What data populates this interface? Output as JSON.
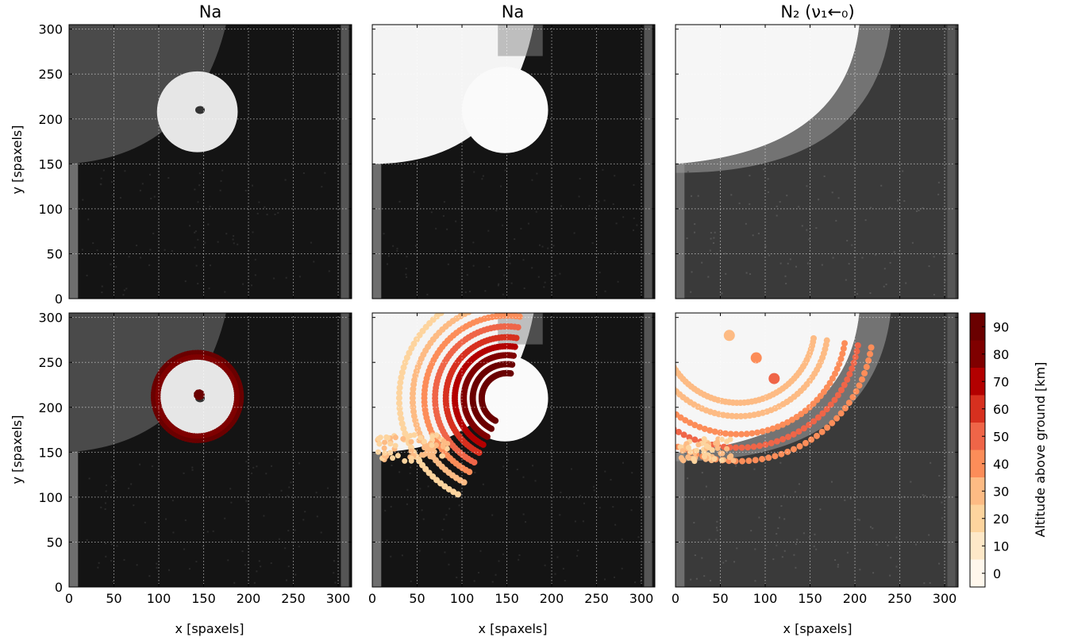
{
  "figure": {
    "panel_titles": [
      "Na",
      "Na",
      "N₂ (ν₁←₀)"
    ],
    "xlabel": "x [spaxels]",
    "ylabel": "y [spaxels]",
    "colorbar_label": "Altitude above ground [km]"
  },
  "chart_data": {
    "type": "heatmap",
    "layout": "2x3 image grid with overlaid altitude-coded scatter markers",
    "xlim": [
      0,
      315
    ],
    "ylim": [
      0,
      305
    ],
    "x_ticks": [
      0,
      50,
      100,
      150,
      200,
      250,
      300
    ],
    "y_ticks": [
      0,
      50,
      100,
      150,
      200,
      250,
      300
    ],
    "grid": true,
    "colormap": "OrRd (discrete, 10 km steps)",
    "colorbar": {
      "range": [
        -5,
        95
      ],
      "ticks": [
        0,
        10,
        20,
        30,
        40,
        50,
        60,
        70,
        80,
        90
      ],
      "colors": [
        "#fff7ec",
        "#fee8c8",
        "#fdd49e",
        "#fdbb84",
        "#fc8d59",
        "#ef6548",
        "#d7301f",
        "#b30000",
        "#7f0000",
        "#6a0000"
      ],
      "placement": "right of bottom row"
    },
    "panels": [
      {
        "row": 1,
        "col": 1,
        "title": "Na",
        "image": "dim grey background, bright disk centred near (143, 208) with radius ~45, bright haze top-left",
        "disk_center": [
          143,
          208
        ],
        "disk_radius": 45
      },
      {
        "row": 1,
        "col": 2,
        "title": "Na",
        "image": "saturated white region top-left, bright disk near (148, 210) radius ~48",
        "disk_center": [
          148,
          210
        ],
        "disk_radius": 48
      },
      {
        "row": 1,
        "col": 3,
        "title": "N₂ (ν₁←₀)",
        "image": "mid-grey background with saturated white region in upper-left quadrant",
        "disk_center": [
          60,
          280
        ],
        "disk_radius": 135
      },
      {
        "row": 2,
        "col": 1,
        "title": "",
        "overlay": "ring of dark-red markers (~90 km) around disk, radius ~48, center (143, 212)"
      },
      {
        "row": 2,
        "col": 2,
        "title": "",
        "overlay": "concentric arcs of markers from 20 km (outer, light) to 90 km (inner, dark) centred near (150, 210)"
      },
      {
        "row": 2,
        "col": 3,
        "title": "",
        "overlay": "arcs of 30–60 km markers across upper-left bright region"
      }
    ]
  }
}
